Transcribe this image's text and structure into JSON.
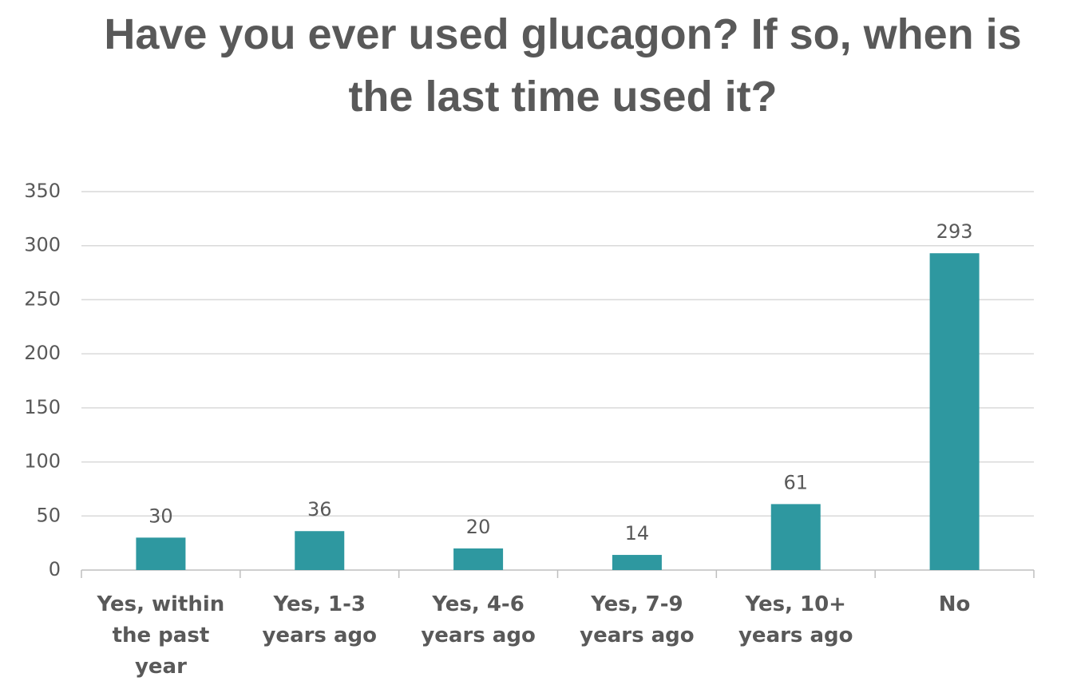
{
  "chart_data": {
    "type": "bar",
    "title": "Have you ever used glucagon? If so, when is the last time used it?",
    "categories": [
      "Yes, within the past year",
      "Yes, 1-3 years ago",
      "Yes, 4-6 years ago",
      "Yes, 7-9 years ago",
      "Yes, 10+ years ago",
      "No"
    ],
    "values": [
      30,
      36,
      20,
      14,
      61,
      293
    ],
    "color": "#2e98a0",
    "ylim": [
      0,
      350
    ],
    "yticks": [
      0,
      50,
      100,
      150,
      200,
      250,
      300,
      350
    ],
    "grid": true
  }
}
